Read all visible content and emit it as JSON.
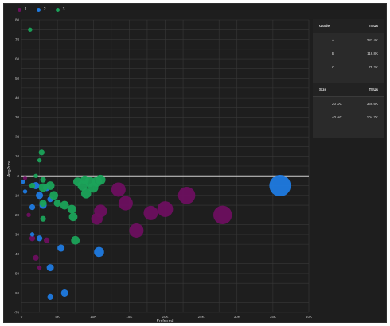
{
  "legend": [
    {
      "label": "1",
      "color": "#6d0f5f"
    },
    {
      "label": "2",
      "color": "#1f7ae0"
    },
    {
      "label": "3",
      "color": "#1ba35a"
    }
  ],
  "grade_table": {
    "headers": [
      "Grade",
      "TEUs"
    ],
    "rows": [
      [
        "A",
        "287.4K"
      ],
      [
        "B",
        "116.8K"
      ],
      [
        "C",
        "75.2K"
      ]
    ]
  },
  "size_table": {
    "headers": [
      "Size",
      "TEUs"
    ],
    "rows": [
      [
        "20 DC",
        "369.6K"
      ],
      [
        "40 HC",
        "104.7K"
      ]
    ]
  },
  "chart_data": {
    "type": "scatter",
    "title": "",
    "xlabel": "Preferred",
    "ylabel": "AvgPrice",
    "xlim": [
      0,
      40000
    ],
    "ylim": [
      -70,
      80
    ],
    "x_ticks": [
      "0",
      "5K",
      "10K",
      "15K",
      "20K",
      "25K",
      "30K",
      "35K",
      "40K"
    ],
    "x_tick_values": [
      0,
      5000,
      10000,
      15000,
      20000,
      25000,
      30000,
      35000,
      40000
    ],
    "y_ticks": [
      80,
      70,
      60,
      50,
      40,
      30,
      20,
      10,
      0,
      -10,
      -20,
      -30,
      -40,
      -50,
      -60,
      -70
    ],
    "grid": true,
    "legend_position": "top-left",
    "series": [
      {
        "name": "1",
        "color": "#6d0f5f",
        "points": [
          {
            "x": 13500,
            "y": -7,
            "size": 5
          },
          {
            "x": 14500,
            "y": -14,
            "size": 5
          },
          {
            "x": 11000,
            "y": -18,
            "size": 4.5
          },
          {
            "x": 10500,
            "y": -22,
            "size": 4
          },
          {
            "x": 16000,
            "y": -28,
            "size": 5
          },
          {
            "x": 18000,
            "y": -19,
            "size": 5
          },
          {
            "x": 20000,
            "y": -17,
            "size": 5.5
          },
          {
            "x": 23000,
            "y": -10,
            "size": 6
          },
          {
            "x": 28000,
            "y": -20,
            "size": 6.5
          },
          {
            "x": 1500,
            "y": -32,
            "size": 2
          },
          {
            "x": 2000,
            "y": -42,
            "size": 2
          },
          {
            "x": 2500,
            "y": -47,
            "size": 1.5
          },
          {
            "x": 3500,
            "y": -33,
            "size": 2
          },
          {
            "x": 500,
            "y": -1,
            "size": 1.5
          },
          {
            "x": 1000,
            "y": -20,
            "size": 1.5
          }
        ]
      },
      {
        "name": "2",
        "color": "#1f7ae0",
        "points": [
          {
            "x": 36000,
            "y": -5,
            "size": 7.5
          },
          {
            "x": 10800,
            "y": -39,
            "size": 3.5
          },
          {
            "x": 5500,
            "y": -37,
            "size": 2.5
          },
          {
            "x": 4000,
            "y": -47,
            "size": 2.5
          },
          {
            "x": 6000,
            "y": -60,
            "size": 2.5
          },
          {
            "x": 4000,
            "y": -62,
            "size": 2
          },
          {
            "x": 2500,
            "y": -32,
            "size": 2
          },
          {
            "x": 1500,
            "y": -30,
            "size": 1.5
          },
          {
            "x": 2000,
            "y": -5,
            "size": 2.5
          },
          {
            "x": 2500,
            "y": -10,
            "size": 2.5
          },
          {
            "x": 3000,
            "y": -15,
            "size": 2.5
          },
          {
            "x": 3500,
            "y": -6,
            "size": 2.5
          },
          {
            "x": 4000,
            "y": -12,
            "size": 2
          },
          {
            "x": 1500,
            "y": -16,
            "size": 2
          },
          {
            "x": 500,
            "y": -8,
            "size": 1.5
          },
          {
            "x": 200,
            "y": -3,
            "size": 1.5
          }
        ]
      },
      {
        "name": "3",
        "color": "#1ba35a",
        "points": [
          {
            "x": 1200,
            "y": 75,
            "size": 1.5
          },
          {
            "x": 2800,
            "y": 12,
            "size": 2
          },
          {
            "x": 2500,
            "y": 8,
            "size": 1.5
          },
          {
            "x": 2000,
            "y": 0,
            "size": 1.5
          },
          {
            "x": 3000,
            "y": -2,
            "size": 2
          },
          {
            "x": 3000,
            "y": -6,
            "size": 3
          },
          {
            "x": 4000,
            "y": -5,
            "size": 3
          },
          {
            "x": 4500,
            "y": -10,
            "size": 3
          },
          {
            "x": 3000,
            "y": -14,
            "size": 2.5
          },
          {
            "x": 3000,
            "y": -22,
            "size": 2
          },
          {
            "x": 5000,
            "y": -14,
            "size": 2.5
          },
          {
            "x": 6000,
            "y": -15,
            "size": 3
          },
          {
            "x": 7000,
            "y": -17,
            "size": 3
          },
          {
            "x": 7200,
            "y": -21,
            "size": 3
          },
          {
            "x": 7500,
            "y": -33,
            "size": 3
          },
          {
            "x": 7800,
            "y": -3,
            "size": 3
          },
          {
            "x": 8500,
            "y": -5,
            "size": 3.5
          },
          {
            "x": 9000,
            "y": -9,
            "size": 3.5
          },
          {
            "x": 9500,
            "y": -3,
            "size": 3.5
          },
          {
            "x": 10000,
            "y": -6,
            "size": 3.5
          },
          {
            "x": 10500,
            "y": -3,
            "size": 3.5
          },
          {
            "x": 11000,
            "y": -2,
            "size": 3.5
          },
          {
            "x": 8800,
            "y": -2,
            "size": 3
          },
          {
            "x": 1500,
            "y": -5,
            "size": 2
          }
        ]
      }
    ]
  }
}
